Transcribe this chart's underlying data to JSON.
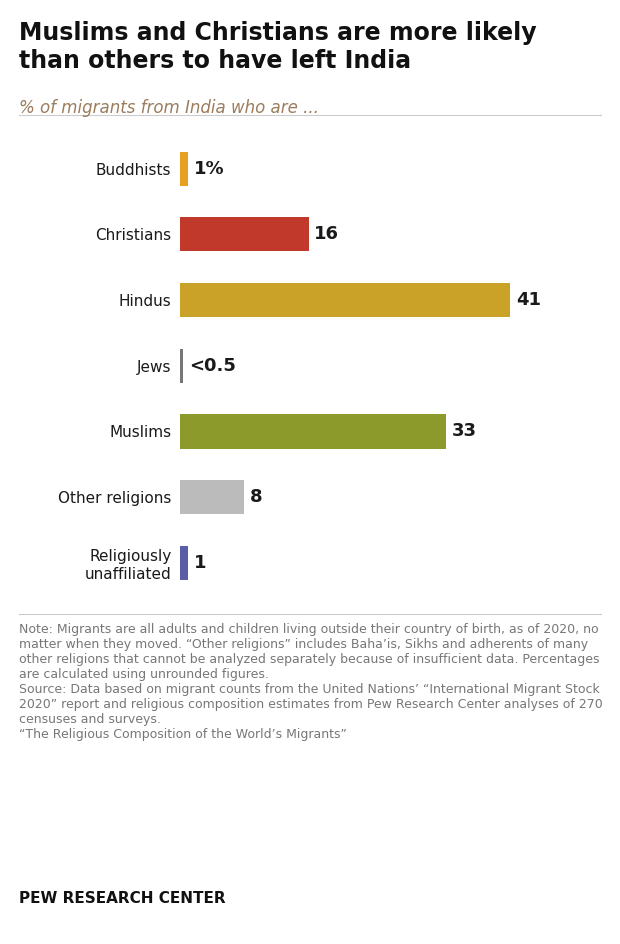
{
  "title": "Muslims and Christians are more likely\nthan others to have left India",
  "subtitle": "% of migrants from India who are ...",
  "categories": [
    "Buddhists",
    "Christians",
    "Hindus",
    "Jews",
    "Muslims",
    "Other religions",
    "Religiously\nunaffiliated"
  ],
  "values": [
    1,
    16,
    41,
    0.25,
    33,
    8,
    1
  ],
  "bar_colors": [
    "#E8A020",
    "#C0392B",
    "#C9A227",
    "#777777",
    "#8B9A2A",
    "#BBBBBB",
    "#5B5EA6"
  ],
  "value_labels": [
    "1%",
    "16",
    "41",
    "<0.5",
    "33",
    "8",
    "1"
  ],
  "xlim": [
    0,
    50
  ],
  "background_color": "#ffffff",
  "title_fontsize": 17,
  "subtitle_fontsize": 12,
  "label_fontsize": 11,
  "value_fontsize": 13,
  "note_fontsize": 9,
  "note_color": "#777777",
  "note_text": "Note: Migrants are all adults and children living outside their country of birth, as of 2020, no matter when they moved. “Other religions” includes Baha’is, Sikhs and adherents of many other religions that cannot be analyzed separately because of insufficient data. Percentages are calculated using unrounded figures.\nSource: Data based on migrant counts from the United Nations’ “International Migrant Stock 2020” report and religious composition estimates from Pew Research Center analyses of 270 censuses and surveys.\n“The Religious Composition of the World’s Migrants”",
  "source_label": "PEW RESEARCH CENTER",
  "bar_height": 0.52,
  "tiny_bar_value": 0.4
}
